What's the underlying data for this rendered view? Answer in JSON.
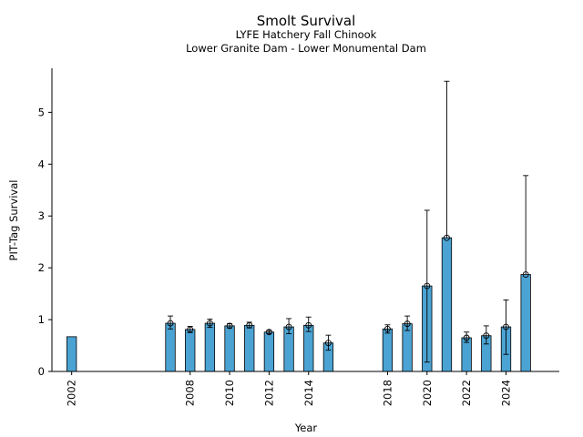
{
  "chart_data": {
    "type": "bar",
    "title": "Smolt Survival",
    "subtitle_lines": [
      "LYFE Hatchery Fall Chinook",
      "Lower Granite Dam - Lower Monumental Dam"
    ],
    "xlabel": "Year",
    "ylabel": "PIT-Tag Survival",
    "xlim": [
      2001.0,
      2026.7
    ],
    "ylim": [
      0,
      5.85
    ],
    "xticks": [
      "2002",
      "2008",
      "2010",
      "2012",
      "2014",
      "2018",
      "2020",
      "2022",
      "2024"
    ],
    "yticks": [
      "0",
      "1",
      "2",
      "3",
      "4",
      "5"
    ],
    "bar_color": "#4ba3d3",
    "bars": [
      {
        "year": 2002,
        "value": 0.67,
        "lower": null,
        "upper": null
      },
      {
        "year": 2007,
        "value": 0.93,
        "lower": 0.82,
        "upper": 1.07
      },
      {
        "year": 2008,
        "value": 0.81,
        "lower": 0.75,
        "upper": 0.87
      },
      {
        "year": 2009,
        "value": 0.93,
        "lower": 0.85,
        "upper": 1.01
      },
      {
        "year": 2010,
        "value": 0.88,
        "lower": 0.84,
        "upper": 0.92
      },
      {
        "year": 2011,
        "value": 0.89,
        "lower": 0.84,
        "upper": 0.95
      },
      {
        "year": 2012,
        "value": 0.76,
        "lower": 0.73,
        "upper": 0.79
      },
      {
        "year": 2013,
        "value": 0.86,
        "lower": 0.73,
        "upper": 1.02
      },
      {
        "year": 2014,
        "value": 0.89,
        "lower": 0.77,
        "upper": 1.05
      },
      {
        "year": 2015,
        "value": 0.55,
        "lower": 0.41,
        "upper": 0.7
      },
      {
        "year": 2018,
        "value": 0.82,
        "lower": 0.74,
        "upper": 0.9
      },
      {
        "year": 2019,
        "value": 0.92,
        "lower": 0.79,
        "upper": 1.07
      },
      {
        "year": 2020,
        "value": 1.65,
        "lower": 0.18,
        "upper": 3.11
      },
      {
        "year": 2021,
        "value": 2.58,
        "lower": null,
        "upper": 5.6
      },
      {
        "year": 2022,
        "value": 0.65,
        "lower": 0.56,
        "upper": 0.76
      },
      {
        "year": 2023,
        "value": 0.69,
        "lower": 0.53,
        "upper": 0.88
      },
      {
        "year": 2024,
        "value": 0.86,
        "lower": 0.33,
        "upper": 1.38
      },
      {
        "year": 2025,
        "value": 1.87,
        "lower": null,
        "upper": 3.78
      }
    ]
  }
}
